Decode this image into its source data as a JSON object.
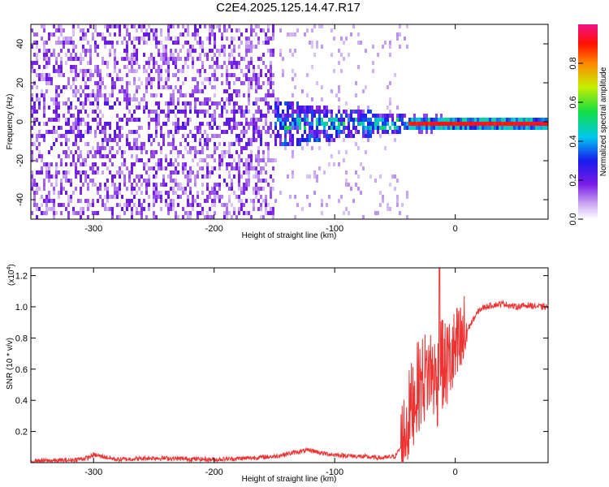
{
  "title": "C2E4.2025.125.14.47.R17",
  "chart_data": [
    {
      "type": "heatmap",
      "xlabel": "Height of straight line (km)",
      "ylabel": "Frequency (Hz)",
      "xlim": [
        -352,
        77
      ],
      "ylim": [
        -50,
        50
      ],
      "x_ticks": [
        -300,
        -200,
        -100,
        0
      ],
      "x_tick_labels": [
        "-300",
        "-200",
        "-100",
        "0"
      ],
      "y_ticks": [
        -40,
        -20,
        0,
        20,
        40
      ],
      "y_tick_labels": [
        "-40",
        "-20",
        "0",
        "20",
        "40"
      ],
      "colorbar": {
        "label": "Normalized spectral amplitude",
        "range": [
          0,
          1
        ],
        "ticks": [
          0.0,
          0.2,
          0.4,
          0.6,
          0.8
        ],
        "tick_labels": [
          "0.0",
          "0.2",
          "0.4",
          "0.6",
          "0.8"
        ],
        "colormap": "rainbow (white → purple → blue → cyan → green → yellow → red → magenta)"
      },
      "description_regions": {
        "noise_spread": {
          "x_range": [
            -352,
            -150
          ],
          "freq_range": [
            -50,
            50
          ],
          "amplitude": 0.15
        },
        "narrowing": {
          "x_range": [
            -150,
            -40
          ],
          "freq_range": [
            -10,
            10
          ],
          "amplitude": 0.3
        },
        "carrier_line": {
          "x_range": [
            -40,
            77
          ],
          "freq": 0,
          "amplitude": 0.9
        }
      }
    },
    {
      "type": "line",
      "xlabel": "Height of straight line (km)",
      "ylabel": "SNR (10 * v/v)",
      "y_multiplier_label": "(x10",
      "y_multiplier_exp": "4",
      "xlim": [
        -352,
        77
      ],
      "ylim": [
        0,
        1.25
      ],
      "x_ticks": [
        -300,
        -200,
        -100,
        0
      ],
      "x_tick_labels": [
        "-300",
        "-200",
        "-100",
        "0"
      ],
      "y_ticks": [
        0.2,
        0.4,
        0.6,
        0.8,
        1.0,
        1.2
      ],
      "y_tick_labels": [
        "0.2",
        "0.4",
        "0.6",
        "0.8",
        "1.0",
        "1.2"
      ],
      "color": "#ee3333",
      "x": [
        -352,
        -320,
        -305,
        -300,
        -280,
        -250,
        -200,
        -170,
        -150,
        -130,
        -120,
        -110,
        -100,
        -80,
        -60,
        -50,
        -45,
        -40,
        -35,
        -30,
        -25,
        -20,
        -15,
        -12,
        -10,
        -5,
        0,
        5,
        10,
        15,
        20,
        25,
        30,
        40,
        50,
        60,
        70,
        77
      ],
      "y": [
        0.01,
        0.015,
        0.03,
        0.05,
        0.02,
        0.03,
        0.02,
        0.03,
        0.04,
        0.07,
        0.08,
        0.06,
        0.05,
        0.04,
        0.03,
        0.04,
        0.1,
        0.25,
        0.4,
        0.5,
        0.55,
        0.6,
        0.5,
        0.7,
        0.6,
        0.65,
        0.7,
        0.75,
        0.85,
        0.92,
        0.98,
        1.0,
        1.01,
        1.02,
        1.0,
        1.01,
        1.0,
        1.0
      ]
    }
  ]
}
